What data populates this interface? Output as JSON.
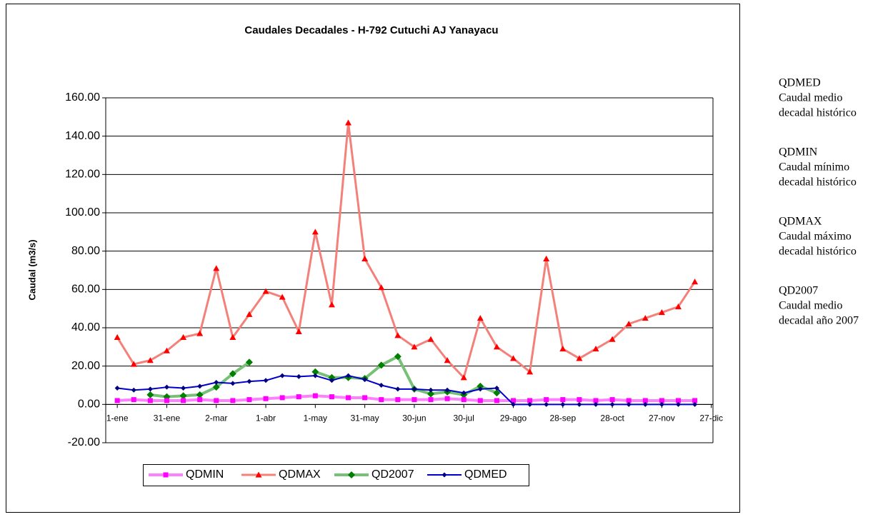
{
  "chart_data": {
    "type": "line",
    "title": "Caudales Decadales - H-792 Cutuchi AJ Yanayacu",
    "ylabel": "Caudal (m3/s)",
    "x": [
      1,
      11,
      21,
      31,
      41,
      51,
      61,
      71,
      81,
      91,
      101,
      111,
      121,
      131,
      141,
      151,
      161,
      171,
      181,
      191,
      201,
      211,
      221,
      231,
      241,
      251,
      261,
      271,
      281,
      291,
      301,
      311,
      321,
      331,
      341,
      351
    ],
    "xlim": [
      -6,
      362
    ],
    "xticks": [
      {
        "value": 1,
        "label": "1-ene"
      },
      {
        "value": 31,
        "label": "31-ene"
      },
      {
        "value": 61,
        "label": "2-mar"
      },
      {
        "value": 91,
        "label": "1-abr"
      },
      {
        "value": 121,
        "label": "1-may"
      },
      {
        "value": 151,
        "label": "31-may"
      },
      {
        "value": 181,
        "label": "30-jun"
      },
      {
        "value": 211,
        "label": "30-jul"
      },
      {
        "value": 241,
        "label": "29-ago"
      },
      {
        "value": 271,
        "label": "28-sep"
      },
      {
        "value": 301,
        "label": "28-oct"
      },
      {
        "value": 331,
        "label": "27-nov"
      },
      {
        "value": 361,
        "label": "27-dic"
      }
    ],
    "ylim": [
      -20,
      160
    ],
    "yticks": [
      {
        "value": -20,
        "label": "-20.00"
      },
      {
        "value": 0,
        "label": "0.00"
      },
      {
        "value": 20,
        "label": "20.00"
      },
      {
        "value": 40,
        "label": "40.00"
      },
      {
        "value": 60,
        "label": "60.00"
      },
      {
        "value": 80,
        "label": "80.00"
      },
      {
        "value": 100,
        "label": "100.00"
      },
      {
        "value": 120,
        "label": "120.00"
      },
      {
        "value": 140,
        "label": "140.00"
      },
      {
        "value": 160,
        "label": "160.00"
      }
    ],
    "grid": true,
    "legend": "bottom",
    "series": [
      {
        "name": "QDMIN",
        "color": "#ff80ff",
        "marker_color": "#ff00ff",
        "marker": "square",
        "values": [
          2,
          2.5,
          2,
          2,
          2,
          2.5,
          2,
          2,
          2.5,
          3,
          3.5,
          4,
          4.5,
          4,
          3.5,
          3.5,
          2.5,
          2.5,
          2.5,
          2.5,
          3,
          2.5,
          2,
          2,
          2,
          2,
          2.5,
          2.5,
          2.5,
          2,
          2.5,
          2,
          2,
          2,
          2,
          2
        ]
      },
      {
        "name": "QDMAX",
        "color": "#f4807a",
        "marker_color": "#ff0000",
        "marker": "triangle",
        "values": [
          35,
          21,
          23,
          28,
          35,
          37,
          71,
          35,
          47,
          59,
          56,
          38,
          90,
          52,
          147,
          76,
          61,
          36,
          30,
          34,
          23,
          14,
          45,
          30,
          24,
          17,
          76,
          29,
          24,
          29,
          34,
          42,
          45,
          48,
          51,
          64
        ]
      },
      {
        "name": "QD2007",
        "color": "#77c077",
        "marker_color": "#008000",
        "marker": "diamond",
        "values": [
          null,
          null,
          5,
          4,
          4.5,
          5,
          9,
          16,
          22,
          null,
          null,
          null,
          17,
          14,
          14,
          13.5,
          20.5,
          25,
          8,
          5.5,
          6.5,
          5,
          9.5,
          6,
          null,
          null,
          null,
          null,
          null,
          null,
          null,
          null,
          null,
          null,
          null,
          null
        ]
      },
      {
        "name": "QDMED",
        "color": "#0000cc",
        "marker_color": "#000080",
        "marker": "smalldiamond",
        "values": [
          8.5,
          7.5,
          8,
          9,
          8.5,
          9.5,
          11.5,
          11,
          12,
          12.5,
          15,
          14.5,
          15,
          12.5,
          15,
          13,
          10,
          8,
          8,
          7.5,
          7.5,
          6,
          8,
          8.5,
          0,
          0,
          0,
          0,
          0,
          0,
          0,
          0,
          0,
          0,
          0,
          0
        ]
      }
    ]
  },
  "notes": [
    {
      "key": "QDMED",
      "lines": [
        "Caudal medio",
        "decadal histórico"
      ]
    },
    {
      "key": "QDMIN",
      "lines": [
        "Caudal mínimo",
        "decadal histórico"
      ]
    },
    {
      "key": "QDMAX",
      "lines": [
        "Caudal máximo",
        "decadal histórico"
      ]
    },
    {
      "key": "QD2007",
      "lines": [
        "Caudal medio",
        "decadal año 2007"
      ]
    }
  ]
}
